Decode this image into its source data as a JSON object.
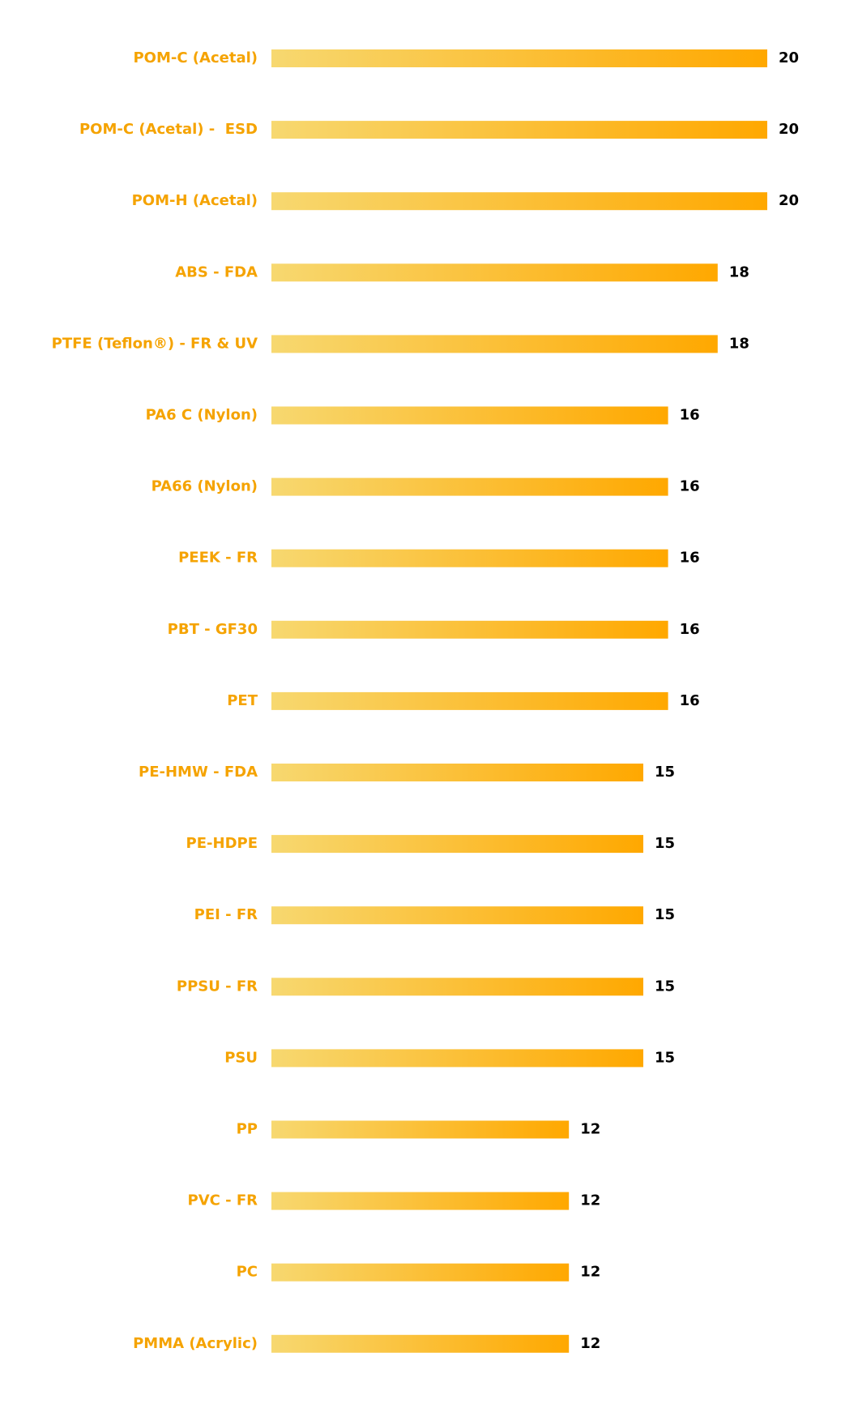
{
  "chart_data": {
    "type": "hbar",
    "categories": [
      "POM-C (Acetal)",
      "POM-C (Acetal) -  ESD",
      "POM-H (Acetal)",
      "ABS - FDA",
      "PTFE (Teflon®) - FR & UV",
      "PA6 C (Nylon)",
      "PA66 (Nylon)",
      "PEEK - FR",
      "PBT - GF30",
      "PET",
      "PE-HMW - FDA",
      "PE-HDPE",
      "PEI - FR",
      "PPSU - FR",
      "PSU",
      "PP",
      "PVC - FR",
      "PC",
      "PMMA (Acrylic)"
    ],
    "values": [
      20,
      20,
      20,
      18,
      18,
      16,
      16,
      16,
      16,
      16,
      15,
      15,
      15,
      15,
      15,
      12,
      12,
      12,
      12
    ],
    "gradient": [
      "#f7d870",
      "#ffa800"
    ],
    "label_color": "#f5a300",
    "value_color": "#000000"
  }
}
